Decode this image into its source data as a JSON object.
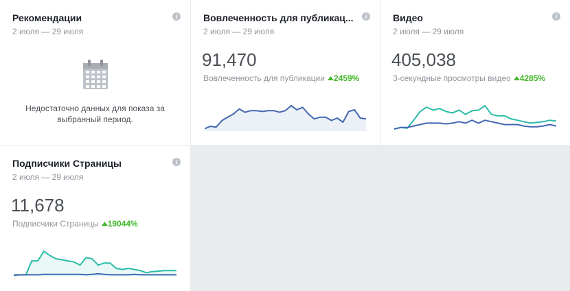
{
  "cards": [
    {
      "title": "Рекомендации",
      "date_range": "2 июля — 29 июля",
      "message": "Недостаточно данных для показа за выбранный период."
    },
    {
      "title": "Вовлеченность для публикац...",
      "date_range": "2 июля — 29 июля",
      "metric": "91,470",
      "metric_label": "Вовлеченность для публикации",
      "change": "2459%",
      "chart": {
        "type": "line",
        "series": [
          {
            "color": "#4267b2",
            "area": true,
            "values": [
              2,
              5,
              4,
              12,
              16,
              20,
              26,
              22,
              24,
              24,
              23,
              24,
              24,
              22,
              24,
              30,
              25,
              28,
              20,
              14,
              16,
              16,
              12,
              15,
              10,
              23,
              25,
              15,
              14
            ]
          }
        ]
      }
    },
    {
      "title": "Видео",
      "date_range": "2 июля — 29 июля",
      "metric": "405,038",
      "metric_label": "3-секундные просмотры видео",
      "change": "4285%",
      "chart": {
        "type": "line",
        "series": [
          {
            "color": "#2abba7",
            "area": false,
            "values": [
              2,
              4,
              3,
              14,
              26,
              32,
              28,
              30,
              26,
              24,
              28,
              22,
              27,
              28,
              34,
              22,
              20,
              20,
              16,
              14,
              12,
              10,
              11,
              12,
              14,
              13
            ]
          },
          {
            "color": "#4267b2",
            "area": false,
            "values": [
              2,
              4,
              4,
              6,
              8,
              10,
              10,
              10,
              9,
              10,
              12,
              10,
              14,
              10,
              14,
              12,
              10,
              8,
              8,
              8,
              6,
              5,
              5,
              6,
              8,
              6
            ]
          }
        ]
      }
    },
    {
      "title": "Подписчики Страницы",
      "date_range": "2 июля — 29 июля",
      "metric": "11,678",
      "metric_label": "Подписчики Страницы",
      "change": "19044%",
      "chart": {
        "type": "line",
        "series": [
          {
            "color": "#2abba7",
            "area": true,
            "values": [
              2,
              2,
              2,
              28,
              28,
              46,
              38,
              32,
              30,
              28,
              26,
              20,
              34,
              32,
              20,
              24,
              24,
              14,
              12,
              14,
              12,
              10,
              6,
              8,
              9,
              10,
              10,
              10
            ]
          },
          {
            "color": "#4267b2",
            "area": false,
            "values": [
              1,
              2,
              2,
              2,
              2,
              3,
              3,
              3,
              3,
              3,
              3,
              3,
              2,
              3,
              4,
              3,
              2,
              2,
              2,
              2,
              3,
              2,
              2,
              2,
              2,
              2,
              2,
              2
            ]
          }
        ]
      }
    }
  ]
}
